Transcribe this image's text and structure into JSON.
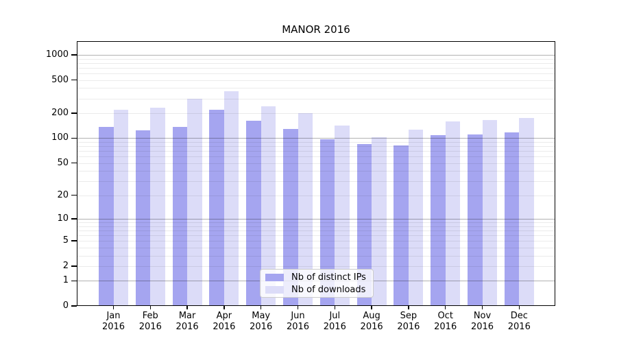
{
  "chart_data": {
    "type": "bar",
    "title": "MANOR 2016",
    "months": [
      "Jan",
      "Feb",
      "Mar",
      "Apr",
      "May",
      "Jun",
      "Jul",
      "Aug",
      "Sep",
      "Oct",
      "Nov",
      "Dec"
    ],
    "year_label": "2016",
    "series": [
      {
        "name": "Nb of distinct IPs",
        "color": "#a5a5f0",
        "values": [
          137,
          124,
          137,
          221,
          162,
          130,
          97,
          85,
          82,
          109,
          112,
          118
        ]
      },
      {
        "name": "Nb of downloads",
        "color": "#dcdcf8",
        "values": [
          218,
          235,
          300,
          364,
          240,
          199,
          141,
          102,
          126,
          159,
          164,
          175
        ]
      }
    ],
    "yscale": "log1p",
    "yticks": [
      0,
      1,
      2,
      5,
      10,
      20,
      50,
      100,
      200,
      500,
      1000
    ],
    "ylim": [
      0,
      1460
    ],
    "grid": {
      "major": [
        1,
        10,
        100,
        1000
      ],
      "minor": [
        2,
        3,
        4,
        5,
        6,
        7,
        8,
        9,
        20,
        30,
        40,
        50,
        60,
        70,
        80,
        90,
        200,
        300,
        400,
        500,
        600,
        700,
        800,
        900
      ]
    },
    "legend_position": "lower center",
    "grid_on": true
  }
}
